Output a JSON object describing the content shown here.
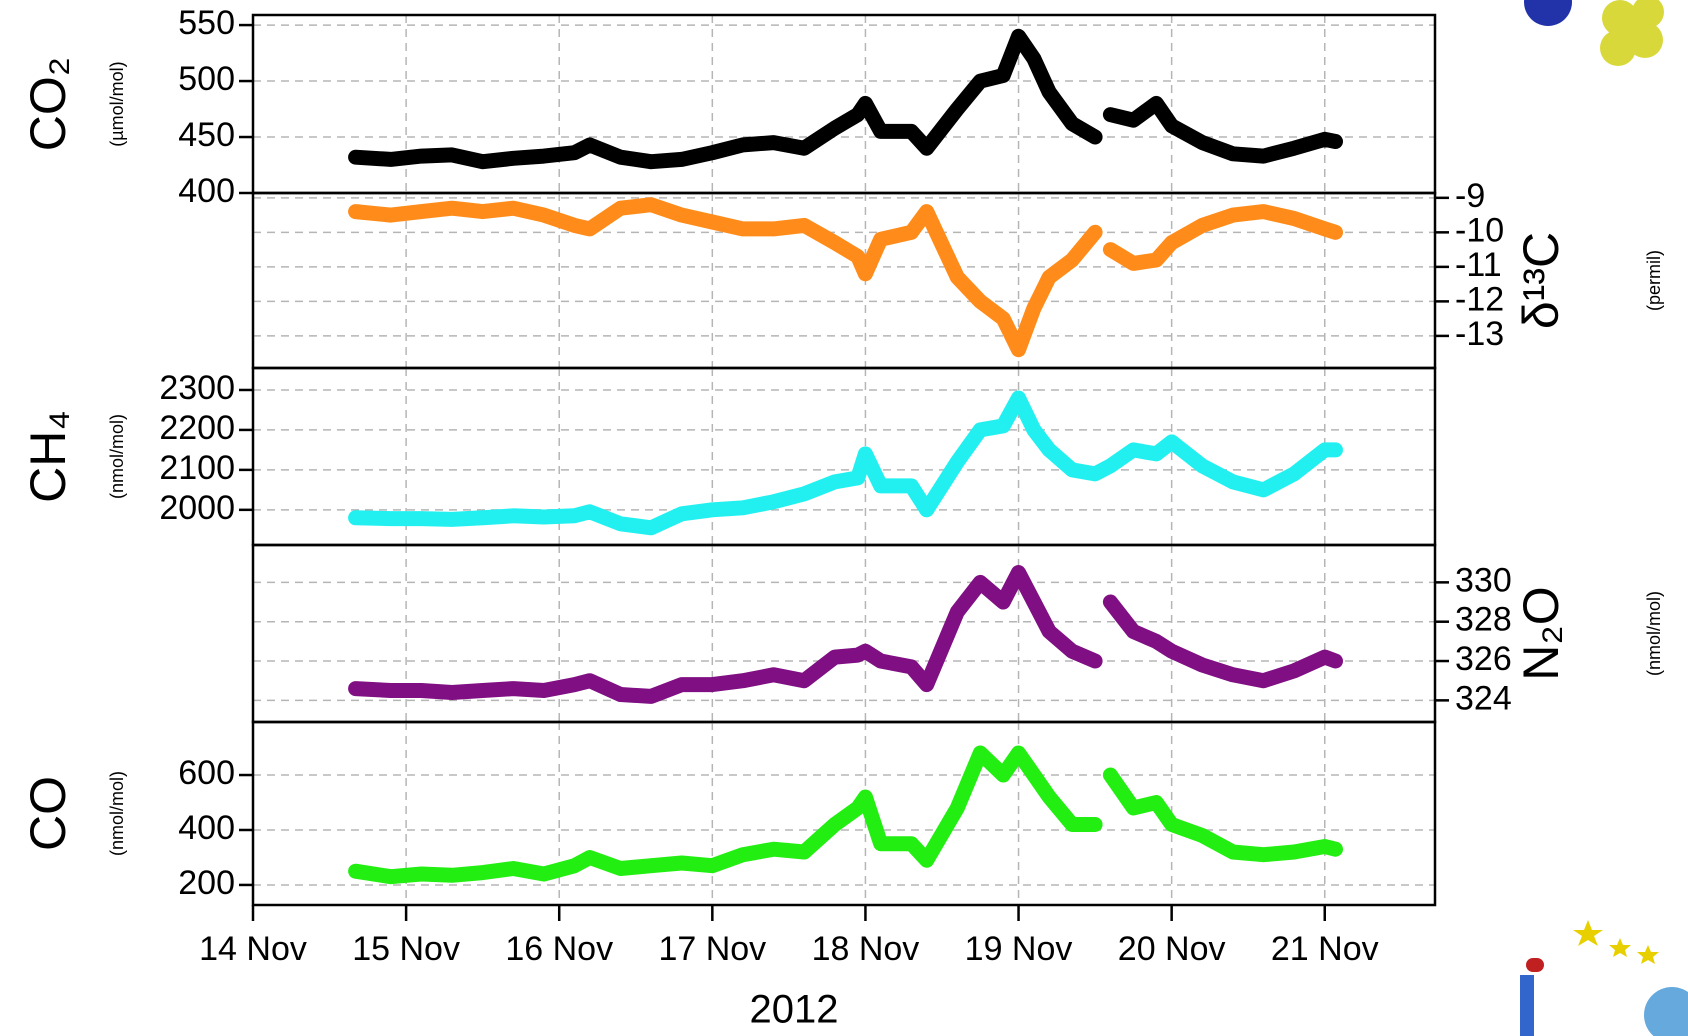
{
  "chart_data": [
    {
      "type": "line",
      "label": "CO₂",
      "unit": "(µmol/mol)",
      "axis_side": "left",
      "color": "#000000",
      "grid": true,
      "x": [
        14.67,
        14.9,
        15.1,
        15.3,
        15.5,
        15.7,
        15.9,
        16.1,
        16.2,
        16.4,
        16.6,
        16.8,
        17.0,
        17.2,
        17.4,
        17.6,
        17.8,
        17.95,
        18.0,
        18.1,
        18.3,
        18.4,
        18.6,
        18.75,
        18.9,
        19.0,
        19.1,
        19.2,
        19.35,
        19.5,
        19.55,
        19.6,
        19.75,
        19.9,
        20.0,
        20.2,
        20.4,
        20.6,
        20.8,
        21.0,
        21.07
      ],
      "values": [
        432,
        430,
        433,
        434,
        428,
        431,
        433,
        436,
        443,
        432,
        428,
        430,
        436,
        443,
        445,
        440,
        458,
        470,
        480,
        455,
        455,
        440,
        475,
        500,
        505,
        540,
        520,
        490,
        462,
        450,
        null,
        470,
        465,
        480,
        460,
        445,
        435,
        433,
        440,
        448,
        446
      ],
      "ylim": [
        400,
        559
      ],
      "yticks": [
        400,
        450,
        500,
        550
      ]
    },
    {
      "type": "line",
      "label": "δ¹³C",
      "unit": "(permil)",
      "axis_side": "right",
      "color": "#ff8c1a",
      "grid": true,
      "x": [
        14.67,
        14.9,
        15.1,
        15.3,
        15.5,
        15.7,
        15.9,
        16.1,
        16.2,
        16.4,
        16.6,
        16.8,
        17.0,
        17.2,
        17.4,
        17.6,
        17.8,
        17.95,
        18.0,
        18.1,
        18.3,
        18.4,
        18.6,
        18.75,
        18.9,
        19.0,
        19.1,
        19.2,
        19.35,
        19.5,
        19.55,
        19.6,
        19.75,
        19.9,
        20.0,
        20.2,
        20.4,
        20.6,
        20.8,
        21.0,
        21.07
      ],
      "values": [
        -9.4,
        -9.5,
        -9.4,
        -9.3,
        -9.4,
        -9.3,
        -9.5,
        -9.8,
        -9.9,
        -9.3,
        -9.2,
        -9.5,
        -9.7,
        -9.9,
        -9.9,
        -9.8,
        -10.3,
        -10.7,
        -11.2,
        -10.2,
        -10.0,
        -9.4,
        -11.3,
        -12.0,
        -12.5,
        -13.4,
        -12.2,
        -11.3,
        -10.8,
        -10.0,
        null,
        -10.5,
        -10.9,
        -10.8,
        -10.3,
        -9.8,
        -9.5,
        -9.4,
        -9.6,
        -9.9,
        -10.0
      ],
      "ylim": [
        -13.93,
        -8.86
      ],
      "yticks": [
        -13,
        -12,
        -11,
        -10,
        -9
      ]
    },
    {
      "type": "line",
      "label": "CH₄",
      "unit": "(nmol/mol)",
      "axis_side": "left",
      "color": "#22f0f0",
      "grid": true,
      "x": [
        14.67,
        14.9,
        15.1,
        15.3,
        15.5,
        15.7,
        15.9,
        16.1,
        16.2,
        16.4,
        16.6,
        16.8,
        17.0,
        17.2,
        17.4,
        17.6,
        17.8,
        17.95,
        18.0,
        18.1,
        18.3,
        18.4,
        18.6,
        18.75,
        18.9,
        19.0,
        19.1,
        19.2,
        19.35,
        19.5,
        19.55,
        19.6,
        19.75,
        19.9,
        20.0,
        20.2,
        20.4,
        20.6,
        20.8,
        21.0,
        21.07
      ],
      "values": [
        1980,
        1978,
        1978,
        1976,
        1980,
        1985,
        1982,
        1985,
        1995,
        1965,
        1955,
        1990,
        2000,
        2005,
        2020,
        2040,
        2070,
        2080,
        2140,
        2060,
        2060,
        2000,
        2120,
        2200,
        2210,
        2280,
        2200,
        2150,
        2100,
        2090,
        2100,
        2110,
        2150,
        2140,
        2170,
        2110,
        2070,
        2050,
        2090,
        2150,
        2150
      ],
      "ylim": [
        1912,
        2355
      ],
      "yticks": [
        2000,
        2100,
        2200,
        2300
      ]
    },
    {
      "type": "line",
      "label": "N₂O",
      "unit": "(nmol/mol)",
      "axis_side": "right",
      "color": "#7f0f82",
      "grid": true,
      "x": [
        14.67,
        14.9,
        15.1,
        15.3,
        15.5,
        15.7,
        15.9,
        16.1,
        16.2,
        16.4,
        16.6,
        16.8,
        17.0,
        17.2,
        17.4,
        17.6,
        17.8,
        17.95,
        18.0,
        18.1,
        18.3,
        18.4,
        18.6,
        18.75,
        18.9,
        19.0,
        19.1,
        19.2,
        19.35,
        19.5,
        19.55,
        19.6,
        19.75,
        19.9,
        20.0,
        20.2,
        20.4,
        20.6,
        20.8,
        21.0,
        21.07
      ],
      "values": [
        324.6,
        324.5,
        324.5,
        324.4,
        324.5,
        324.6,
        324.5,
        324.8,
        325.0,
        324.3,
        324.2,
        324.8,
        324.8,
        325.0,
        325.3,
        325.0,
        326.2,
        326.3,
        326.5,
        326.0,
        325.7,
        324.8,
        328.5,
        330.0,
        329.0,
        330.5,
        329.0,
        327.5,
        326.5,
        326.0,
        null,
        329.0,
        327.5,
        327.0,
        326.5,
        325.8,
        325.3,
        325.0,
        325.5,
        326.2,
        326.0
      ],
      "ylim": [
        322.9,
        331.9
      ],
      "yticks": [
        324,
        326,
        328,
        330
      ]
    },
    {
      "type": "line",
      "label": "CO",
      "unit": "(nmol/mol)",
      "axis_side": "left",
      "color": "#22ee11",
      "grid": true,
      "x": [
        14.67,
        14.9,
        15.1,
        15.3,
        15.5,
        15.7,
        15.9,
        16.1,
        16.2,
        16.4,
        16.6,
        16.8,
        17.0,
        17.2,
        17.4,
        17.6,
        17.8,
        17.95,
        18.0,
        18.1,
        18.3,
        18.4,
        18.6,
        18.75,
        18.9,
        19.0,
        19.1,
        19.2,
        19.35,
        19.5,
        19.55,
        19.6,
        19.75,
        19.9,
        20.0,
        20.2,
        20.4,
        20.6,
        20.8,
        21.0,
        21.07
      ],
      "values": [
        250,
        230,
        240,
        235,
        245,
        260,
        240,
        270,
        300,
        260,
        270,
        280,
        270,
        310,
        330,
        320,
        420,
        480,
        520,
        350,
        350,
        290,
        480,
        680,
        600,
        680,
        600,
        520,
        420,
        420,
        null,
        600,
        480,
        500,
        420,
        380,
        320,
        310,
        320,
        340,
        330
      ],
      "ylim": [
        127,
        793
      ],
      "yticks": [
        200,
        400,
        600
      ],
      "xlabel": "2012",
      "xlim": [
        14,
        21.72
      ],
      "xticks": [
        {
          "value": 14,
          "label": "14 Nov"
        },
        {
          "value": 15,
          "label": "15 Nov"
        },
        {
          "value": 16,
          "label": "16 Nov"
        },
        {
          "value": 17,
          "label": "17 Nov"
        },
        {
          "value": 18,
          "label": "18 Nov"
        },
        {
          "value": 19,
          "label": "19 Nov"
        },
        {
          "value": 20,
          "label": "20 Nov"
        },
        {
          "value": 21,
          "label": "21 Nov"
        }
      ]
    }
  ]
}
